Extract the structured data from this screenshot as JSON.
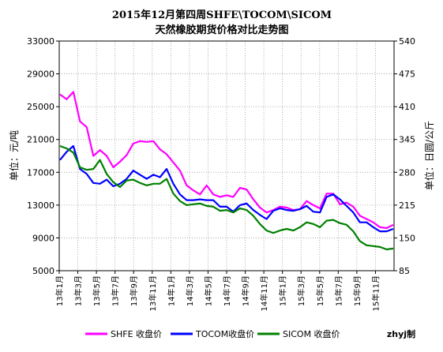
{
  "chart_data": {
    "type": "line",
    "title": "2015年12月第四周SHFE\\TOCOM\\SICOM",
    "subtitle": "天然橡胶期货价格对比走势图",
    "ylabel_left": "单位：元/吨",
    "ylabel_right": "单位：日圆/公斤",
    "ylim_left": [
      5000,
      33000
    ],
    "yticks_left": [
      5000,
      9000,
      13000,
      17000,
      21000,
      25000,
      29000,
      33000
    ],
    "ylim_right": [
      85,
      540
    ],
    "yticks_right": [
      85,
      150,
      215,
      280,
      345,
      410,
      475,
      540
    ],
    "x_tick_labels": [
      "13年1月",
      "13年3月",
      "13年5月",
      "13年7月",
      "13年9月",
      "13年11月",
      "14年1月",
      "14年3月",
      "14年5月",
      "14年7月",
      "14年9月",
      "14年11月",
      "15年1月",
      "15年3月",
      "15年5月",
      "15年7月",
      "15年9月",
      "15年11月"
    ],
    "grid": true,
    "legend_position": "bottom",
    "credit": "zhyj制",
    "series": [
      {
        "name": "SHFE 收盘价",
        "axis": "left",
        "color": "#ff00ff",
        "values": [
          26500,
          25900,
          26800,
          23200,
          22500,
          19000,
          19700,
          19000,
          17600,
          18300,
          19100,
          20500,
          20800,
          20700,
          20800,
          19800,
          19200,
          18200,
          17200,
          15400,
          14800,
          14300,
          15400,
          14300,
          14000,
          14200,
          14000,
          15100,
          14900,
          13700,
          12700,
          12100,
          12400,
          12800,
          12700,
          12400,
          12500,
          13500,
          13000,
          12600,
          14400,
          14400,
          13100,
          13300,
          12800,
          11700,
          11300,
          10900,
          10300,
          10200,
          10600
        ]
      },
      {
        "name": "TOCOM收盘价",
        "axis": "left",
        "color": "#0000ff",
        "values": [
          18500,
          19500,
          20200,
          17400,
          16800,
          15700,
          15600,
          16100,
          15300,
          15600,
          16200,
          17200,
          16700,
          16200,
          16700,
          16400,
          17400,
          15600,
          14300,
          13600,
          13600,
          13700,
          13600,
          13600,
          12800,
          12800,
          12200,
          13000,
          13200,
          12400,
          11800,
          11300,
          12300,
          12600,
          12400,
          12300,
          12500,
          12900,
          12200,
          12100,
          14000,
          14300,
          13700,
          12900,
          12100,
          10900,
          10900,
          10300,
          9800,
          9800,
          10100
        ]
      },
      {
        "name": "SICOM 收盘价",
        "axis": "left",
        "color": "#008000",
        "values": [
          20200,
          19900,
          19400,
          17600,
          17300,
          17400,
          18500,
          16800,
          15800,
          15200,
          16000,
          16100,
          15700,
          15400,
          15600,
          15600,
          16200,
          14400,
          13500,
          13000,
          13100,
          13200,
          12900,
          12800,
          12300,
          12400,
          12100,
          12600,
          12400,
          11700,
          10700,
          9900,
          9600,
          9900,
          10100,
          9900,
          10300,
          10900,
          10700,
          10300,
          11100,
          11200,
          10800,
          10600,
          9800,
          8600,
          8100,
          8000,
          7900,
          7600,
          7700
        ]
      }
    ]
  }
}
